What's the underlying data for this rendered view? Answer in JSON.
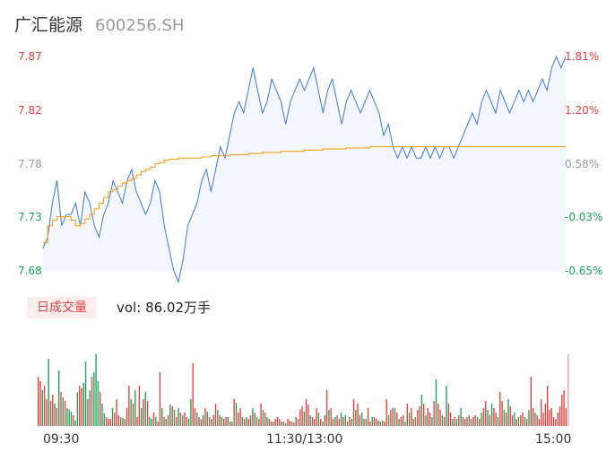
{
  "header": {
    "name": "广汇能源",
    "code": "600256.SH"
  },
  "colors": {
    "up": "#e8413f",
    "down": "#1aa55a",
    "flat": "#999999",
    "price_line": "#3a78e0",
    "avg_line": "#f2a31b"
  },
  "vol_panel": {
    "badge": "日成交量",
    "label": "vol:",
    "value": "86.02万手"
  },
  "chart_data": [
    {
      "type": "line",
      "series": [
        {
          "values": [
            7.7,
            7.71,
            7.74,
            7.76,
            7.72,
            7.73,
            7.73,
            7.74,
            7.72,
            7.75,
            7.74,
            7.72,
            7.71,
            7.73,
            7.74,
            7.76,
            7.75,
            7.74,
            7.76,
            7.77,
            7.75,
            7.74,
            7.73,
            7.74,
            7.76,
            7.75,
            7.72,
            7.7,
            7.68,
            7.67,
            7.69,
            7.72,
            7.73,
            7.74,
            7.76,
            7.77,
            7.75,
            7.77,
            7.79,
            7.78,
            7.8,
            7.82,
            7.83,
            7.82,
            7.84,
            7.86,
            7.84,
            7.82,
            7.83,
            7.85,
            7.84,
            7.83,
            7.81,
            7.83,
            7.84,
            7.85,
            7.84,
            7.85,
            7.86,
            7.84,
            7.82,
            7.84,
            7.85,
            7.83,
            7.81,
            7.83,
            7.84,
            7.83,
            7.82,
            7.83,
            7.84,
            7.83,
            7.82,
            7.8,
            7.81,
            7.79,
            7.78,
            7.79,
            7.78,
            7.79,
            7.78,
            7.78,
            7.79,
            7.78,
            7.79,
            7.78,
            7.79,
            7.79,
            7.78,
            7.79,
            7.8,
            7.81,
            7.82,
            7.81,
            7.83,
            7.84,
            7.83,
            7.82,
            7.84,
            7.83,
            7.82,
            7.83,
            7.84,
            7.83,
            7.84,
            7.83,
            7.84,
            7.85,
            7.84,
            7.86,
            7.87,
            7.86,
            7.87
          ]
        },
        {
          "values": [
            7.705,
            7.72,
            7.725,
            7.728,
            7.728,
            7.728,
            7.725,
            7.72,
            7.722,
            7.726,
            7.73,
            7.735,
            7.74,
            7.745,
            7.75,
            7.752,
            7.755,
            7.758,
            7.76,
            7.762,
            7.765,
            7.768,
            7.77,
            7.772,
            7.775,
            7.776,
            7.778,
            7.779,
            7.779,
            7.78,
            7.78,
            7.78,
            7.78,
            7.78,
            7.781,
            7.781,
            7.782,
            7.782,
            7.782,
            7.782,
            7.783,
            7.783,
            7.783,
            7.783,
            7.784,
            7.784,
            7.784,
            7.785,
            7.785,
            7.785,
            7.785,
            7.786,
            7.786,
            7.786,
            7.786,
            7.786,
            7.787,
            7.787,
            7.787,
            7.787,
            7.788,
            7.788,
            7.788,
            7.788,
            7.788,
            7.789,
            7.789,
            7.789,
            7.789,
            7.789,
            7.79,
            7.79,
            7.79,
            7.79,
            7.79,
            7.79,
            7.79,
            7.79,
            7.79,
            7.79,
            7.79,
            7.79,
            7.79,
            7.79,
            7.79,
            7.79,
            7.79,
            7.79,
            7.79,
            7.79,
            7.79,
            7.79,
            7.79,
            7.79,
            7.79,
            7.79,
            7.79,
            7.79,
            7.79,
            7.79,
            7.79,
            7.79,
            7.79,
            7.79,
            7.79,
            7.79,
            7.79,
            7.79,
            7.79,
            7.79,
            7.79,
            7.79,
            7.79
          ]
        }
      ],
      "ylim": [
        7.68,
        7.87
      ],
      "yticks": [
        {
          "left": "7.87",
          "right": "1.81%",
          "color": "up"
        },
        {
          "left": "7.82",
          "right": "1.20%",
          "color": "up"
        },
        {
          "left": "7.78",
          "right": "0.58%",
          "color": "flat"
        },
        {
          "left": "7.73",
          "right": "-0.03%",
          "color": "down"
        },
        {
          "left": "7.68",
          "right": "-0.65%",
          "color": "down"
        }
      ]
    },
    {
      "type": "bar",
      "xticks": [
        "09:30",
        "11:30/13:00",
        "15:00"
      ],
      "values": [
        55,
        50,
        40,
        45,
        30,
        75,
        28,
        35,
        25,
        20,
        62,
        38,
        32,
        28,
        20,
        18,
        16,
        12,
        6,
        38,
        45,
        42,
        48,
        72,
        30,
        40,
        55,
        60,
        80,
        50,
        38,
        25,
        14,
        10,
        8,
        8,
        20,
        15,
        30,
        12,
        10,
        9,
        8,
        20,
        45,
        30,
        25,
        40,
        10,
        45,
        20,
        30,
        38,
        28,
        10,
        8,
        15,
        10,
        5,
        60,
        20,
        10,
        8,
        12,
        24,
        22,
        18,
        10,
        20,
        15,
        12,
        15,
        10,
        8,
        30,
        70,
        20,
        15,
        10,
        8,
        12,
        20,
        16,
        10,
        8,
        12,
        25,
        18,
        12,
        10,
        8,
        10,
        10,
        5,
        5,
        30,
        26,
        15,
        20,
        10,
        8,
        10,
        8,
        12,
        20,
        15,
        10,
        8,
        25,
        18,
        15,
        10,
        8,
        5,
        5,
        8,
        10,
        8,
        5,
        5,
        3,
        8,
        6,
        5,
        4,
        10,
        8,
        18,
        22,
        16,
        30,
        24,
        12,
        10,
        8,
        20,
        15,
        8,
        5,
        12,
        40,
        18,
        20,
        8,
        10,
        12,
        8,
        15,
        10,
        12,
        5,
        10,
        8,
        30,
        18,
        25,
        12,
        15,
        8,
        8,
        20,
        5,
        10,
        10,
        8,
        6,
        5,
        6,
        5,
        30,
        12,
        18,
        20,
        20,
        15,
        8,
        10,
        12,
        5,
        25,
        15,
        20,
        8,
        10,
        18,
        22,
        35,
        25,
        12,
        20,
        15,
        10,
        28,
        52,
        25,
        18,
        12,
        10,
        45,
        25,
        15,
        8,
        10,
        8,
        12,
        20,
        10,
        8,
        10,
        12,
        8,
        10,
        12,
        10,
        8,
        15,
        20,
        28,
        18,
        12,
        25,
        20,
        15,
        10,
        38,
        28,
        18,
        15,
        30,
        22,
        12,
        15,
        8,
        10,
        12,
        15,
        10,
        8,
        18,
        55,
        20,
        15,
        12,
        8,
        30,
        15,
        25,
        45,
        18,
        20,
        10,
        8,
        15,
        22,
        35,
        40,
        20
      ],
      "colors": [
        "u",
        "u",
        "d",
        "u",
        "u",
        "d",
        "u",
        "u",
        "d",
        "u",
        "d",
        "u",
        "d",
        "u",
        "d",
        "d",
        "d",
        "u",
        "d",
        "d",
        "u",
        "u",
        "d",
        "d",
        "u",
        "d",
        "u",
        "d",
        "d",
        "d",
        "u",
        "d",
        "d",
        "u",
        "u",
        "u",
        "d",
        "u",
        "u",
        "u",
        "d",
        "u",
        "d",
        "u",
        "u",
        "d",
        "u",
        "d",
        "u",
        "u",
        "d",
        "u",
        "d",
        "u",
        "d",
        "d",
        "u",
        "d",
        "u",
        "u",
        "d",
        "u",
        "d",
        "u",
        "d",
        "u",
        "d",
        "u",
        "d",
        "u",
        "d",
        "u",
        "u",
        "d",
        "d",
        "u",
        "u",
        "d",
        "u",
        "u",
        "d",
        "u",
        "d",
        "u",
        "d",
        "u",
        "u",
        "d",
        "u",
        "d",
        "u",
        "u",
        "d",
        "u",
        "d",
        "u",
        "d",
        "u",
        "u",
        "d",
        "u",
        "d",
        "u",
        "u",
        "d",
        "u",
        "d",
        "u",
        "u",
        "d",
        "u",
        "d",
        "u",
        "u",
        "d",
        "u",
        "u",
        "u",
        "d",
        "u",
        "d",
        "u",
        "u",
        "d",
        "u",
        "u",
        "d",
        "u",
        "u",
        "d",
        "u",
        "u",
        "d",
        "u",
        "u",
        "u",
        "d",
        "u",
        "d",
        "u",
        "u",
        "d",
        "u",
        "u",
        "d",
        "u",
        "u",
        "d",
        "u",
        "d",
        "u",
        "u",
        "d",
        "u",
        "d",
        "u",
        "u",
        "d",
        "u",
        "d",
        "u",
        "u",
        "d",
        "u",
        "u",
        "d",
        "u",
        "d",
        "u",
        "u",
        "d",
        "u",
        "u",
        "d",
        "u",
        "d",
        "u",
        "u",
        "d",
        "u",
        "d",
        "u",
        "u",
        "d",
        "u",
        "u",
        "d",
        "u",
        "d",
        "u",
        "u",
        "d",
        "u",
        "d",
        "u",
        "u",
        "d",
        "u",
        "d",
        "u",
        "u",
        "d",
        "u",
        "d",
        "u",
        "d",
        "u",
        "u",
        "d",
        "u",
        "d",
        "u",
        "u",
        "d",
        "u",
        "d",
        "u",
        "u",
        "d",
        "u",
        "d",
        "u",
        "u",
        "d",
        "u",
        "u",
        "d",
        "u",
        "d",
        "u",
        "u",
        "d",
        "u",
        "d",
        "u",
        "u",
        "d",
        "u",
        "d",
        "u",
        "u",
        "d",
        "u",
        "u"
      ]
    }
  ]
}
